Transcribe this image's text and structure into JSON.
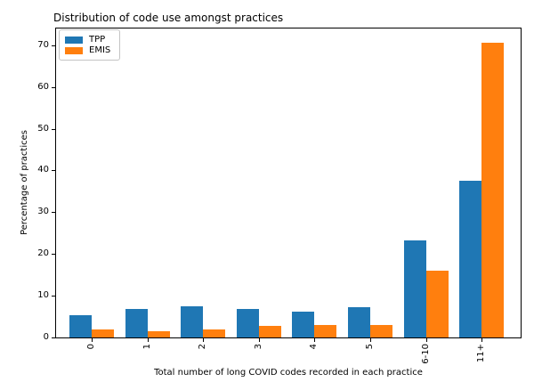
{
  "chart_data": {
    "type": "bar",
    "title": "Distribution of code use amongst practices",
    "xlabel": "Total number of long COVID codes recorded in each practice",
    "ylabel": "Percentage of practices",
    "categories": [
      "0",
      "1",
      "2",
      "3",
      "4",
      "5",
      "6-10",
      "11+"
    ],
    "series": [
      {
        "name": "TPP",
        "color": "#1f77b4",
        "values": [
          5.4,
          6.9,
          7.5,
          6.9,
          6.1,
          7.2,
          23.3,
          37.5
        ]
      },
      {
        "name": "EMIS",
        "color": "#ff7f0e",
        "values": [
          2.0,
          1.4,
          2.0,
          2.8,
          2.9,
          3.0,
          15.9,
          70.5
        ]
      }
    ],
    "yticks": [
      0,
      10,
      20,
      30,
      40,
      50,
      60,
      70
    ],
    "ylim": [
      0,
      74
    ],
    "grid": false,
    "legend_position": "upper-left",
    "bar_width_units": 0.4,
    "axis_color": "#000000",
    "background_color": "#ffffff"
  }
}
